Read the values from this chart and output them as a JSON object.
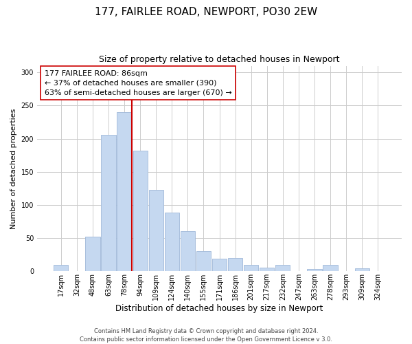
{
  "title": "177, FAIRLEE ROAD, NEWPORT, PO30 2EW",
  "subtitle": "Size of property relative to detached houses in Newport",
  "xlabel": "Distribution of detached houses by size in Newport",
  "ylabel": "Number of detached properties",
  "categories": [
    "17sqm",
    "32sqm",
    "48sqm",
    "63sqm",
    "78sqm",
    "94sqm",
    "109sqm",
    "124sqm",
    "140sqm",
    "155sqm",
    "171sqm",
    "186sqm",
    "201sqm",
    "217sqm",
    "232sqm",
    "247sqm",
    "263sqm",
    "278sqm",
    "293sqm",
    "309sqm",
    "324sqm"
  ],
  "values": [
    10,
    0,
    52,
    206,
    240,
    182,
    123,
    88,
    61,
    30,
    19,
    20,
    10,
    5,
    10,
    0,
    3,
    10,
    0,
    4,
    0
  ],
  "bar_color": "#c5d8f0",
  "bar_edge_color": "#a0b8d8",
  "vline_color": "#cc0000",
  "annotation_text": "177 FAIRLEE ROAD: 86sqm\n← 37% of detached houses are smaller (390)\n63% of semi-detached houses are larger (670) →",
  "annotation_box_edge_color": "#cc0000",
  "footnote1": "Contains HM Land Registry data © Crown copyright and database right 2024.",
  "footnote2": "Contains public sector information licensed under the Open Government Licence v 3.0.",
  "ylim": [
    0,
    310
  ],
  "title_fontsize": 11,
  "subtitle_fontsize": 9,
  "xlabel_fontsize": 8.5,
  "ylabel_fontsize": 8,
  "tick_fontsize": 7,
  "annotation_fontsize": 8,
  "footnote_fontsize": 6,
  "background_color": "#ffffff",
  "grid_color": "#cccccc"
}
